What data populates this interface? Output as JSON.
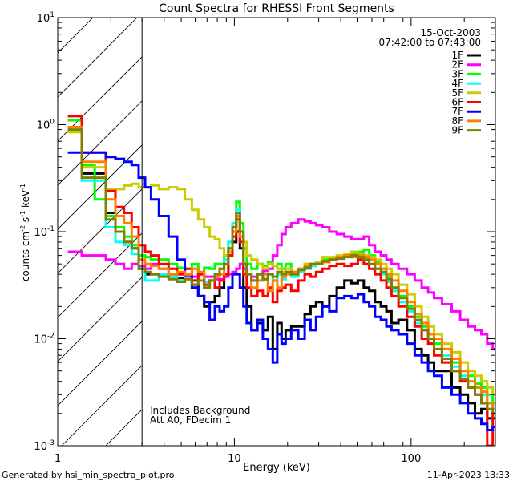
{
  "chart_data": {
    "type": "line",
    "title": "Count Spectra for RHESSI Front Segments",
    "xlabel": "Energy (keV)",
    "ylabel": "counts cm^-2 s^-1 keV^-1",
    "ylabel_parts": {
      "base": "counts cm",
      "exp1": "-2",
      "mid": " s",
      "exp2": "-1",
      "mid2": " keV",
      "exp3": "-1"
    },
    "xscale": "log",
    "yscale": "log",
    "xlim": [
      1,
      300
    ],
    "ylim": [
      0.001,
      10
    ],
    "x_tick_labels": [
      {
        "value": 1,
        "label": "1"
      },
      {
        "value": 10,
        "label": "10"
      },
      {
        "value": 100,
        "label": "100"
      }
    ],
    "y_tick_labels": [
      {
        "value": 10,
        "base": "10",
        "exp": "1"
      },
      {
        "value": 1,
        "base": "10",
        "exp": "0"
      },
      {
        "value": 0.1,
        "base": "10",
        "exp": "-1"
      },
      {
        "value": 0.01,
        "base": "10",
        "exp": "-2"
      },
      {
        "value": 0.001,
        "base": "10",
        "exp": "-3"
      }
    ],
    "grid": false,
    "hatched_region": {
      "x_from": 1,
      "x_to": 3
    },
    "legend_placement": "top-right",
    "legend_header": [
      "15-Oct-2003",
      "07:42:00 to 07:43:00"
    ],
    "annotations": [
      "Includes Background",
      "Att A0, FDecim 1"
    ],
    "x": [
      1.25,
      1.5,
      1.75,
      2.0,
      2.25,
      2.5,
      2.75,
      3.0,
      3.25,
      3.5,
      4,
      4.5,
      5,
      5.5,
      6,
      6.5,
      7,
      7.5,
      8,
      8.5,
      9,
      9.5,
      10,
      10.5,
      11,
      11.5,
      12,
      13,
      14,
      15,
      16,
      17,
      18,
      19,
      20,
      22,
      24,
      26,
      28,
      30,
      33,
      36,
      40,
      44,
      48,
      52,
      56,
      60,
      65,
      70,
      75,
      80,
      90,
      100,
      110,
      120,
      130,
      140,
      160,
      180,
      200,
      220,
      240,
      260,
      280,
      300
    ],
    "series": [
      {
        "name": "1F",
        "color": "#000000",
        "values": [
          0.95,
          0.35,
          0.35,
          0.15,
          0.1,
          0.08,
          0.07,
          0.045,
          0.04,
          0.04,
          0.04,
          0.038,
          0.037,
          0.04,
          0.032,
          0.025,
          0.02,
          0.022,
          0.025,
          0.03,
          0.04,
          0.06,
          0.08,
          0.1,
          0.07,
          0.03,
          0.02,
          0.012,
          0.014,
          0.012,
          0.016,
          0.008,
          0.014,
          0.01,
          0.012,
          0.013,
          0.013,
          0.017,
          0.02,
          0.022,
          0.02,
          0.025,
          0.03,
          0.035,
          0.033,
          0.035,
          0.03,
          0.028,
          0.022,
          0.02,
          0.018,
          0.014,
          0.015,
          0.012,
          0.008,
          0.007,
          0.006,
          0.005,
          0.005,
          0.0035,
          0.003,
          0.0025,
          0.002,
          0.0022,
          0.0018,
          0.0018
        ]
      },
      {
        "name": "2F",
        "color": "#ff00ff",
        "values": [
          0.065,
          0.06,
          0.06,
          0.055,
          0.05,
          0.045,
          0.05,
          0.048,
          0.045,
          0.05,
          0.045,
          0.04,
          0.04,
          0.038,
          0.038,
          0.04,
          0.038,
          0.038,
          0.036,
          0.036,
          0.038,
          0.04,
          0.042,
          0.045,
          0.05,
          0.045,
          0.04,
          0.038,
          0.04,
          0.043,
          0.045,
          0.06,
          0.075,
          0.095,
          0.11,
          0.12,
          0.13,
          0.125,
          0.12,
          0.115,
          0.11,
          0.1,
          0.095,
          0.09,
          0.085,
          0.085,
          0.09,
          0.075,
          0.065,
          0.06,
          0.055,
          0.05,
          0.045,
          0.04,
          0.035,
          0.03,
          0.027,
          0.024,
          0.021,
          0.018,
          0.015,
          0.013,
          0.012,
          0.011,
          0.009,
          0.008
        ]
      },
      {
        "name": "3F",
        "color": "#00ff00",
        "values": [
          1.1,
          0.42,
          0.2,
          0.14,
          0.11,
          0.09,
          0.075,
          0.06,
          0.058,
          0.055,
          0.055,
          0.05,
          0.046,
          0.045,
          0.05,
          0.04,
          0.046,
          0.045,
          0.05,
          0.05,
          0.06,
          0.08,
          0.12,
          0.19,
          0.12,
          0.07,
          0.05,
          0.045,
          0.05,
          0.048,
          0.052,
          0.048,
          0.05,
          0.045,
          0.05,
          0.042,
          0.045,
          0.05,
          0.048,
          0.052,
          0.055,
          0.055,
          0.058,
          0.06,
          0.062,
          0.065,
          0.068,
          0.06,
          0.052,
          0.045,
          0.038,
          0.03,
          0.025,
          0.02,
          0.016,
          0.013,
          0.011,
          0.009,
          0.007,
          0.006,
          0.005,
          0.0045,
          0.0038,
          0.0035,
          0.003,
          0.0025
        ]
      },
      {
        "name": "4F",
        "color": "#00ffff",
        "values": [
          0.95,
          0.3,
          0.3,
          0.11,
          0.08,
          0.075,
          0.062,
          0.045,
          0.035,
          0.035,
          0.04,
          0.038,
          0.035,
          0.037,
          0.035,
          0.04,
          0.034,
          0.035,
          0.04,
          0.045,
          0.055,
          0.08,
          0.12,
          0.16,
          0.1,
          0.05,
          0.04,
          0.035,
          0.04,
          0.036,
          0.04,
          0.035,
          0.04,
          0.036,
          0.04,
          0.038,
          0.042,
          0.045,
          0.048,
          0.05,
          0.052,
          0.055,
          0.058,
          0.06,
          0.06,
          0.058,
          0.055,
          0.05,
          0.045,
          0.04,
          0.034,
          0.028,
          0.022,
          0.018,
          0.014,
          0.012,
          0.01,
          0.008,
          0.007,
          0.0055,
          0.0045,
          0.004,
          0.0035,
          0.003,
          0.0025,
          0.0022
        ]
      },
      {
        "name": "5F",
        "color": "#cccc00",
        "values": [
          0.85,
          0.4,
          0.4,
          0.25,
          0.25,
          0.27,
          0.28,
          0.26,
          0.26,
          0.27,
          0.25,
          0.26,
          0.25,
          0.2,
          0.16,
          0.13,
          0.11,
          0.09,
          0.085,
          0.07,
          0.06,
          0.065,
          0.09,
          0.14,
          0.1,
          0.08,
          0.06,
          0.055,
          0.05,
          0.045,
          0.05,
          0.048,
          0.045,
          0.042,
          0.045,
          0.042,
          0.045,
          0.05,
          0.05,
          0.052,
          0.058,
          0.058,
          0.06,
          0.062,
          0.065,
          0.062,
          0.06,
          0.058,
          0.055,
          0.05,
          0.045,
          0.04,
          0.032,
          0.026,
          0.02,
          0.016,
          0.013,
          0.011,
          0.009,
          0.0075,
          0.006,
          0.005,
          0.0045,
          0.004,
          0.0035,
          0.003
        ]
      },
      {
        "name": "6F",
        "color": "#ff0000",
        "values": [
          1.2,
          0.55,
          0.55,
          0.24,
          0.17,
          0.15,
          0.11,
          0.075,
          0.065,
          0.06,
          0.05,
          0.045,
          0.04,
          0.045,
          0.035,
          0.04,
          0.032,
          0.035,
          0.03,
          0.035,
          0.04,
          0.06,
          0.09,
          0.13,
          0.08,
          0.04,
          0.03,
          0.025,
          0.028,
          0.025,
          0.03,
          0.022,
          0.028,
          0.03,
          0.032,
          0.028,
          0.035,
          0.04,
          0.038,
          0.042,
          0.045,
          0.048,
          0.05,
          0.048,
          0.05,
          0.055,
          0.05,
          0.045,
          0.04,
          0.035,
          0.03,
          0.025,
          0.02,
          0.016,
          0.013,
          0.01,
          0.009,
          0.007,
          0.006,
          0.005,
          0.004,
          0.0035,
          0.003,
          0.0025,
          0.001,
          0.002
        ]
      },
      {
        "name": "7F",
        "color": "#0000ff",
        "values": [
          0.55,
          0.55,
          0.55,
          0.5,
          0.48,
          0.45,
          0.42,
          0.32,
          0.26,
          0.2,
          0.14,
          0.09,
          0.055,
          0.04,
          0.03,
          0.025,
          0.022,
          0.015,
          0.02,
          0.018,
          0.02,
          0.03,
          0.04,
          0.04,
          0.03,
          0.02,
          0.014,
          0.012,
          0.015,
          0.01,
          0.008,
          0.006,
          0.011,
          0.009,
          0.01,
          0.012,
          0.01,
          0.015,
          0.012,
          0.016,
          0.02,
          0.018,
          0.024,
          0.025,
          0.024,
          0.026,
          0.022,
          0.02,
          0.016,
          0.015,
          0.013,
          0.012,
          0.011,
          0.009,
          0.007,
          0.006,
          0.005,
          0.0045,
          0.0035,
          0.003,
          0.0025,
          0.002,
          0.0018,
          0.0016,
          0.0014,
          0.0015
        ]
      },
      {
        "name": "8F",
        "color": "#ff8000",
        "values": [
          0.95,
          0.45,
          0.45,
          0.2,
          0.14,
          0.12,
          0.09,
          0.055,
          0.05,
          0.048,
          0.045,
          0.04,
          0.042,
          0.04,
          0.045,
          0.042,
          0.03,
          0.035,
          0.038,
          0.04,
          0.05,
          0.07,
          0.1,
          0.14,
          0.09,
          0.05,
          0.04,
          0.03,
          0.035,
          0.04,
          0.028,
          0.035,
          0.03,
          0.038,
          0.04,
          0.042,
          0.045,
          0.048,
          0.05,
          0.05,
          0.052,
          0.055,
          0.058,
          0.06,
          0.058,
          0.06,
          0.058,
          0.055,
          0.05,
          0.045,
          0.04,
          0.035,
          0.028,
          0.022,
          0.017,
          0.014,
          0.011,
          0.01,
          0.008,
          0.0065,
          0.005,
          0.004,
          0.0035,
          0.0032,
          0.0025,
          0.002
        ]
      },
      {
        "name": "9F",
        "color": "#808000",
        "values": [
          0.9,
          0.32,
          0.32,
          0.13,
          0.1,
          0.08,
          0.07,
          0.045,
          0.042,
          0.04,
          0.038,
          0.036,
          0.034,
          0.036,
          0.032,
          0.035,
          0.03,
          0.035,
          0.04,
          0.045,
          0.05,
          0.07,
          0.11,
          0.15,
          0.1,
          0.05,
          0.04,
          0.035,
          0.04,
          0.036,
          0.04,
          0.038,
          0.042,
          0.04,
          0.042,
          0.04,
          0.044,
          0.046,
          0.05,
          0.05,
          0.053,
          0.055,
          0.056,
          0.058,
          0.06,
          0.058,
          0.055,
          0.05,
          0.045,
          0.042,
          0.036,
          0.03,
          0.024,
          0.019,
          0.015,
          0.012,
          0.01,
          0.008,
          0.0065,
          0.005,
          0.0042,
          0.0035,
          0.003,
          0.0025,
          0.0022,
          0.002
        ]
      }
    ]
  },
  "footer": {
    "generated_by": "Generated by hsi_min_spectra_plot.pro",
    "timestamp": "11-Apr-2023 13:33"
  }
}
